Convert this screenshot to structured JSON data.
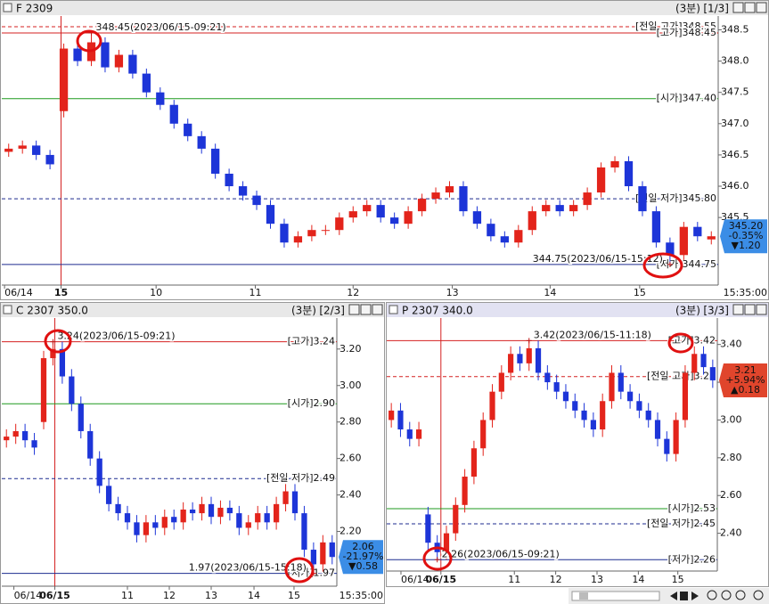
{
  "chart_data": [
    {
      "type": "candlestick",
      "title": "F 2309",
      "interval": "(3분)",
      "page": "[1/3]",
      "time_label": "15:35:00",
      "up_color": "#e3241b",
      "down_color": "#1d35d8",
      "xlim": [
        0,
        52
      ],
      "ylim": [
        344.42,
        348.72
      ],
      "xticks": [
        {
          "value": 0.2,
          "label": "06/14"
        },
        {
          "value": 4.3,
          "label": "15"
        },
        {
          "value": 11.2,
          "label": "10"
        },
        {
          "value": 18.4,
          "label": "11"
        },
        {
          "value": 25.5,
          "label": "12"
        },
        {
          "value": 32.7,
          "label": "13"
        },
        {
          "value": 39.8,
          "label": "14"
        },
        {
          "value": 46.3,
          "label": "15"
        }
      ],
      "yticks": [
        345.5,
        {
          "value": 346,
          "label": "346.0"
        },
        346.5,
        {
          "value": 347,
          "label": "347.0"
        },
        347.5,
        {
          "value": 348,
          "label": "348.0"
        },
        348.5
      ],
      "open": [
        346.55,
        346.6,
        346.65,
        346.5,
        347.2,
        348.2,
        348.0,
        348.3,
        347.9,
        348.1,
        347.8,
        347.5,
        347.3,
        347.0,
        346.8,
        346.6,
        346.2,
        346.0,
        345.85,
        345.7,
        345.4,
        345.1,
        345.2,
        345.3,
        345.3,
        345.5,
        345.6,
        345.7,
        345.5,
        345.4,
        345.6,
        345.8,
        345.9,
        346.0,
        345.6,
        345.4,
        345.2,
        345.1,
        345.3,
        345.6,
        345.7,
        345.6,
        345.7,
        345.9,
        346.3,
        346.4,
        346.0,
        345.6,
        345.1,
        344.9,
        345.35,
        345.15
      ],
      "high": [
        346.68,
        346.73,
        346.73,
        346.58,
        348.28,
        348.28,
        348.45,
        348.38,
        348.18,
        348.18,
        347.88,
        347.58,
        347.38,
        347.08,
        346.88,
        346.68,
        346.28,
        346.08,
        345.93,
        345.78,
        345.48,
        345.28,
        345.38,
        345.38,
        345.58,
        345.68,
        345.78,
        345.78,
        345.58,
        345.68,
        345.88,
        345.98,
        346.08,
        346.08,
        345.68,
        345.48,
        345.28,
        345.38,
        345.68,
        345.78,
        345.78,
        345.78,
        345.98,
        346.38,
        346.48,
        346.48,
        346.08,
        345.68,
        345.18,
        345.43,
        345.43,
        345.28
      ],
      "low": [
        346.47,
        346.52,
        346.42,
        346.27,
        347.1,
        347.92,
        347.92,
        347.82,
        347.82,
        347.72,
        347.42,
        347.22,
        346.92,
        346.72,
        346.52,
        346.12,
        345.92,
        345.77,
        345.62,
        345.32,
        345.02,
        345.02,
        345.12,
        345.22,
        345.22,
        345.42,
        345.52,
        345.42,
        345.32,
        345.32,
        345.52,
        345.72,
        345.82,
        345.52,
        345.32,
        345.12,
        345.02,
        345.02,
        345.22,
        345.52,
        345.52,
        345.52,
        345.62,
        345.82,
        346.22,
        345.92,
        345.52,
        345.02,
        344.75,
        344.82,
        345.12,
        345.07
      ],
      "close": [
        346.6,
        346.65,
        346.5,
        346.35,
        348.2,
        348.0,
        348.3,
        347.9,
        348.1,
        347.8,
        347.5,
        347.3,
        347.0,
        346.8,
        346.6,
        346.2,
        346.0,
        345.85,
        345.7,
        345.4,
        345.1,
        345.2,
        345.3,
        345.3,
        345.5,
        345.6,
        345.7,
        345.5,
        345.4,
        345.6,
        345.8,
        345.9,
        346.0,
        345.6,
        345.4,
        345.2,
        345.1,
        345.3,
        345.6,
        345.7,
        345.6,
        345.7,
        345.9,
        346.3,
        346.4,
        346.0,
        345.6,
        345.1,
        344.9,
        345.35,
        345.2,
        345.2
      ],
      "ref_lines": [
        {
          "label": "[전일 고가]",
          "value": 348.55,
          "color": "#d42020",
          "dashed": true
        },
        {
          "label": "[고가]",
          "value": 348.45,
          "color": "#d42020",
          "dashed": false
        },
        {
          "label": "[시가]",
          "value": 347.4,
          "value_label": "347.40",
          "color": "#1f9a1f",
          "dashed": false
        },
        {
          "label": "[전일 저가]",
          "value": 345.8,
          "value_label": "345.80",
          "color": "#1c2b8f",
          "dashed": true
        },
        {
          "label": "[저가]",
          "value": 344.75,
          "color": "#1c2b8f",
          "dashed": false
        }
      ],
      "annotations": [
        {
          "text": "348.45(2023/06/15-09:21)",
          "x": 6,
          "y": 348.45,
          "side": "right"
        },
        {
          "text": "344.75(2023/06/15-15:12)",
          "x": 48,
          "y": 344.75,
          "side": "left"
        }
      ],
      "quote": {
        "value": 345.2,
        "label": "345.20",
        "change_pct": "-0.35%",
        "change": "▼1.20",
        "color": "#3b8de6"
      }
    },
    {
      "type": "candlestick",
      "title": "C 2307 350.0",
      "interval": "(3분)",
      "page": "[2/3]",
      "time_label": "15:35:00",
      "up_color": "#e3241b",
      "down_color": "#1d35d8",
      "xlim": [
        0,
        36
      ],
      "ylim": [
        1.9,
        3.37
      ],
      "xticks": [
        {
          "value": 1.3,
          "label": "06/14"
        },
        {
          "value": 5.7,
          "label": "06/15"
        },
        {
          "value": 13.5,
          "label": "11"
        },
        {
          "value": 18.0,
          "label": "12"
        },
        {
          "value": 22.5,
          "label": "13"
        },
        {
          "value": 27.1,
          "label": "14"
        },
        {
          "value": 31.4,
          "label": "15"
        }
      ],
      "yticks": [
        {
          "value": 2.2,
          "label": "2.20"
        },
        {
          "value": 2.4,
          "label": "2.40"
        },
        {
          "value": 2.6,
          "label": "2.60"
        },
        {
          "value": 2.8,
          "label": "2.80"
        },
        {
          "value": 3,
          "label": "3.00"
        },
        {
          "value": 3.2,
          "label": "3.20"
        }
      ],
      "open": [
        2.7,
        2.72,
        2.75,
        2.7,
        2.8,
        3.15,
        3.2,
        3.05,
        2.9,
        2.75,
        2.6,
        2.45,
        2.35,
        2.3,
        2.25,
        2.18,
        2.25,
        2.22,
        2.28,
        2.25,
        2.32,
        2.3,
        2.35,
        2.28,
        2.33,
        2.3,
        2.22,
        2.25,
        2.3,
        2.25,
        2.35,
        2.42,
        2.3,
        2.1,
        2.02,
        2.14
      ],
      "high": [
        2.76,
        2.79,
        2.79,
        2.74,
        3.19,
        3.24,
        3.24,
        3.09,
        2.94,
        2.79,
        2.64,
        2.49,
        2.39,
        2.34,
        2.29,
        2.29,
        2.29,
        2.32,
        2.32,
        2.36,
        2.36,
        2.39,
        2.39,
        2.37,
        2.37,
        2.34,
        2.29,
        2.34,
        2.34,
        2.39,
        2.46,
        2.46,
        2.34,
        2.14,
        2.18,
        2.18
      ],
      "low": [
        2.66,
        2.68,
        2.66,
        2.62,
        2.76,
        3.11,
        3.01,
        2.86,
        2.71,
        2.56,
        2.41,
        2.31,
        2.26,
        2.21,
        2.14,
        2.14,
        2.18,
        2.18,
        2.21,
        2.21,
        2.26,
        2.26,
        2.24,
        2.24,
        2.26,
        2.18,
        2.18,
        2.21,
        2.21,
        2.21,
        2.31,
        2.26,
        2.06,
        1.97,
        1.98,
        2.02
      ],
      "close": [
        2.72,
        2.75,
        2.7,
        2.66,
        3.15,
        3.2,
        3.05,
        2.9,
        2.75,
        2.6,
        2.45,
        2.35,
        2.3,
        2.25,
        2.18,
        2.25,
        2.22,
        2.28,
        2.25,
        2.32,
        2.3,
        2.35,
        2.28,
        2.33,
        2.3,
        2.22,
        2.25,
        2.3,
        2.25,
        2.35,
        2.42,
        2.3,
        2.1,
        2.02,
        2.14,
        2.06
      ],
      "ref_lines": [
        {
          "label": "[고가]",
          "value": 3.24,
          "color": "#d42020",
          "dashed": false
        },
        {
          "label": "[시가]",
          "value": 2.9,
          "value_label": "2.90",
          "color": "#1f9a1f",
          "dashed": false
        },
        {
          "label": "[전일 저가]",
          "value": 2.49,
          "color": "#1c2b8f",
          "dashed": true
        },
        {
          "label": "[저가]",
          "value": 1.97,
          "color": "#1c2b8f",
          "dashed": false
        }
      ],
      "annotations": [
        {
          "text": "3.24(2023/06/15-09:21)",
          "x": 5,
          "y": 3.24,
          "side": "right"
        },
        {
          "text": "1.97(2023/06/15-15:18)",
          "x": 33,
          "y": 1.97,
          "side": "left"
        }
      ],
      "quote": {
        "value": 2.06,
        "change_pct": "-21.97%",
        "change": "▼0.58",
        "color": "#3b8de6"
      }
    },
    {
      "type": "candlestick",
      "title": "P 2307 340.0",
      "interval": "(3분)",
      "page": "[3/3]",
      "up_color": "#e3241b",
      "down_color": "#1d35d8",
      "xlim": [
        0,
        36
      ],
      "ylim": [
        2.2,
        3.54
      ],
      "xticks": [
        {
          "value": 1.55,
          "label": "06/14"
        },
        {
          "value": 5.9,
          "label": "06/15"
        },
        {
          "value": 13.9,
          "label": "11"
        },
        {
          "value": 18.4,
          "label": "12"
        },
        {
          "value": 22.9,
          "label": "13"
        },
        {
          "value": 27.4,
          "label": "14"
        },
        {
          "value": 31.7,
          "label": "15"
        }
      ],
      "yticks": [
        {
          "value": 2.4,
          "label": "2.40"
        },
        {
          "value": 2.6,
          "label": "2.60"
        },
        {
          "value": 2.8,
          "label": "2.80"
        },
        {
          "value": 3,
          "label": "3.00"
        },
        {
          "value": 3.2,
          "label": "3.20"
        },
        {
          "value": 3.4,
          "label": "3.40"
        }
      ],
      "open": [
        3.0,
        3.05,
        2.95,
        2.9,
        2.5,
        2.35,
        2.3,
        2.4,
        2.55,
        2.7,
        2.85,
        3.0,
        3.15,
        3.25,
        3.35,
        3.3,
        3.38,
        3.25,
        3.2,
        3.15,
        3.1,
        3.05,
        3.0,
        2.95,
        3.1,
        3.25,
        3.15,
        3.1,
        3.05,
        3.0,
        2.9,
        2.82,
        3.0,
        3.25,
        3.35,
        3.28
      ],
      "high": [
        3.09,
        3.09,
        2.99,
        2.99,
        2.54,
        2.39,
        2.44,
        2.59,
        2.74,
        2.89,
        3.04,
        3.19,
        3.29,
        3.39,
        3.39,
        3.42,
        3.42,
        3.29,
        3.24,
        3.19,
        3.14,
        3.09,
        3.04,
        3.14,
        3.29,
        3.29,
        3.19,
        3.14,
        3.09,
        3.04,
        2.94,
        3.04,
        3.29,
        3.39,
        3.39,
        3.32
      ],
      "low": [
        2.96,
        2.91,
        2.86,
        2.86,
        2.31,
        2.26,
        2.26,
        2.36,
        2.51,
        2.66,
        2.81,
        2.96,
        3.11,
        3.21,
        3.26,
        3.26,
        3.21,
        3.16,
        3.11,
        3.06,
        3.01,
        2.96,
        2.91,
        2.91,
        3.06,
        3.11,
        3.06,
        3.01,
        2.96,
        2.86,
        2.78,
        2.78,
        2.96,
        3.21,
        3.24,
        3.17
      ],
      "close": [
        3.05,
        2.95,
        2.9,
        2.95,
        2.35,
        2.3,
        2.4,
        2.55,
        2.7,
        2.85,
        3.0,
        3.15,
        3.25,
        3.35,
        3.3,
        3.38,
        3.25,
        3.2,
        3.15,
        3.1,
        3.05,
        3.0,
        2.95,
        3.1,
        3.25,
        3.15,
        3.1,
        3.05,
        3.0,
        2.9,
        2.82,
        3.0,
        3.25,
        3.35,
        3.28,
        3.21
      ],
      "ref_lines": [
        {
          "label": "[고가]",
          "value": 3.42,
          "color": "#d42020",
          "dashed": false
        },
        {
          "label": "[전일 고가]",
          "value": 3.23,
          "color": "#d42020",
          "dashed": true
        },
        {
          "label": "[시가]",
          "value": 2.53,
          "color": "#1f9a1f",
          "dashed": false
        },
        {
          "label": "[전일 저가]",
          "value": 2.45,
          "color": "#1c2b8f",
          "dashed": true
        },
        {
          "label": "[저가]",
          "value": 2.26,
          "color": "#1c2b8f",
          "dashed": false
        }
      ],
      "annotations": [
        {
          "text": "3.42(2023/06/15-11:18)",
          "x": 15,
          "y": 3.42,
          "side": "right"
        },
        {
          "text": "2.26(2023/06/15-09:21)",
          "x": 5,
          "y": 2.26,
          "side": "right"
        }
      ],
      "quote": {
        "value": 3.21,
        "change_pct": "+5.94%",
        "change": "▲0.18",
        "color": "#e0452c"
      }
    }
  ]
}
